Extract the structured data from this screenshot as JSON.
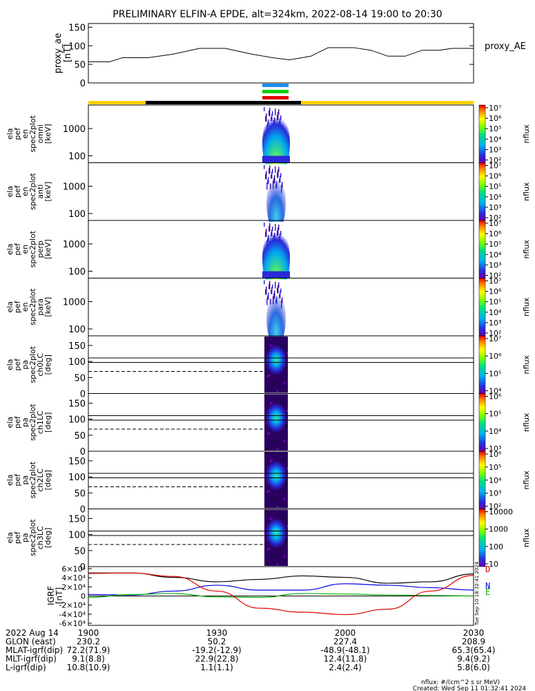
{
  "chart_data": {
    "type": "heatmap",
    "title": "PRELIMINARY ELFIN-A EPDE, alt=324km, 2022-08-14 19:00 to 20:30",
    "x_range": [
      "19:00",
      "20:30"
    ],
    "proxy_ae": {
      "ylabel": [
        "proxy_ae",
        "[nT]"
      ],
      "legend": "proxy_AE",
      "ylim": [
        0,
        150
      ],
      "ticks": [
        "0",
        "50",
        "100",
        "150"
      ],
      "x": [
        0,
        5,
        8,
        14,
        20,
        26,
        32,
        38,
        43,
        47,
        52,
        56,
        62,
        66,
        70,
        74,
        78,
        82,
        85,
        90
      ],
      "values": [
        57,
        57,
        68,
        68,
        78,
        93,
        93,
        78,
        68,
        62,
        72,
        95,
        95,
        88,
        72,
        72,
        88,
        88,
        93,
        93
      ]
    },
    "spectrograms": [
      {
        "label": [
          "ela",
          "pef",
          "en",
          "spec2plot",
          "omni",
          "[keV]"
        ],
        "yticks": [
          "100",
          "1000"
        ],
        "cbar_ticks": [
          "10²",
          "10³",
          "10⁴",
          "10⁵",
          "10⁶",
          "10⁷"
        ],
        "cbar_label": "nflux"
      },
      {
        "label": [
          "ela",
          "pef",
          "en",
          "spec2plot",
          "anti",
          "[keV]"
        ],
        "yticks": [
          "100",
          "1000"
        ],
        "cbar_ticks": [
          "10²",
          "10³",
          "10⁴",
          "10⁵",
          "10⁶",
          "10⁷"
        ],
        "cbar_label": "nflux"
      },
      {
        "label": [
          "ela",
          "pef",
          "en",
          "spec2plot",
          "perp",
          "[keV]"
        ],
        "yticks": [
          "100",
          "1000"
        ],
        "cbar_ticks": [
          "10²",
          "10³",
          "10⁴",
          "10⁵",
          "10⁶",
          "10⁷"
        ],
        "cbar_label": "nflux"
      },
      {
        "label": [
          "ela",
          "pef",
          "en",
          "spec2plot",
          "para",
          "[keV]"
        ],
        "yticks": [
          "100",
          "1000"
        ],
        "cbar_ticks": [
          "10²",
          "10³",
          "10⁴",
          "10⁵",
          "10⁶",
          "10⁷"
        ],
        "cbar_label": "nflux"
      },
      {
        "label": [
          "ela",
          "pef",
          "pa",
          "spec2plot",
          "ch0LC",
          "[deg]"
        ],
        "yticks": [
          "0",
          "50",
          "100",
          "150"
        ],
        "cbar_ticks": [
          "10⁴",
          "10⁵",
          "10⁶",
          "10⁷"
        ],
        "cbar_label": "nflux"
      },
      {
        "label": [
          "ela",
          "pef",
          "pa",
          "spec2plot",
          "ch1LC",
          "[deg]"
        ],
        "yticks": [
          "0",
          "50",
          "100",
          "150"
        ],
        "cbar_ticks": [
          "10³",
          "10⁴",
          "10⁵",
          "10⁶"
        ],
        "cbar_label": "nflux"
      },
      {
        "label": [
          "ela",
          "pef",
          "pa",
          "spec2plot",
          "ch2LC",
          "[deg]"
        ],
        "yticks": [
          "0",
          "50",
          "100",
          "150"
        ],
        "cbar_ticks": [
          "10²",
          "10³",
          "10⁴",
          "10⁵",
          "10⁶"
        ],
        "cbar_label": "nflux"
      },
      {
        "label": [
          "ela",
          "pef",
          "pa",
          "spec2plot",
          "ch3LC",
          "[deg]"
        ],
        "yticks": [
          "0",
          "50",
          "100",
          "150"
        ],
        "cbar_ticks": [
          "10",
          "100",
          "1000",
          "10000"
        ],
        "cbar_label": "nflux"
      }
    ],
    "igrf": {
      "ylabel": [
        "IGRF",
        "[nT]"
      ],
      "yticks": [
        "-6×10⁴",
        "-4×10⁴",
        "-2×10⁴",
        "0",
        "2×10⁴",
        "4×10⁴",
        "6×10⁴"
      ],
      "ylim": [
        -60000,
        60000
      ],
      "legend": [
        {
          "name": "D",
          "color": "#e00000"
        },
        {
          "name": "N",
          "color": "#0000e0"
        },
        {
          "name": "E",
          "color": "#00b000"
        }
      ],
      "x": [
        0,
        10,
        20,
        30,
        40,
        50,
        60,
        70,
        80,
        90
      ],
      "series": [
        {
          "color": "#000000",
          "values": [
            47000,
            47000,
            38000,
            29000,
            34000,
            41000,
            38000,
            26000,
            29000,
            45000
          ]
        },
        {
          "color": "#0000e0",
          "values": [
            3000,
            2000,
            10000,
            22000,
            12000,
            12000,
            25000,
            22000,
            17000,
            12000
          ]
        },
        {
          "color": "#00b000",
          "values": [
            -3000,
            3000,
            5000,
            -2000,
            -3000,
            5000,
            4000,
            2000,
            1000,
            0
          ]
        },
        {
          "color": "#e00000",
          "values": [
            46000,
            47000,
            40000,
            10000,
            -25000,
            -33000,
            -38000,
            -27000,
            10000,
            42000
          ]
        }
      ]
    },
    "timestamp_side": "Tue Sep 10 18:32:41 2024"
  },
  "footer": {
    "rows": [
      [
        "2022 Aug 14",
        "1900",
        "1930",
        "2000",
        "2030"
      ],
      [
        "GLON (east)",
        "230.2",
        "50.2",
        "227.4",
        "208.9"
      ],
      [
        "MLAT-igrf(dip)",
        "72.2(71.9)",
        "-19.2(-12.9)",
        "-48.9(-48.1)",
        "65.3(65.4)"
      ],
      [
        "MLT-igrf(dip)",
        "9.1(8.8)",
        "22.9(22.8)",
        "12.4(11.8)",
        "9.4(9.2)"
      ],
      [
        "L-igrf(dip)",
        "10.8(10.9)",
        "1.1(1.1)",
        "2.4(2.4)",
        "5.8(6.0)"
      ]
    ],
    "units": "nflux: #/(cm^2 s sr MeV)",
    "created": "Created: Wed Sep 11 01:32:41 2024"
  }
}
